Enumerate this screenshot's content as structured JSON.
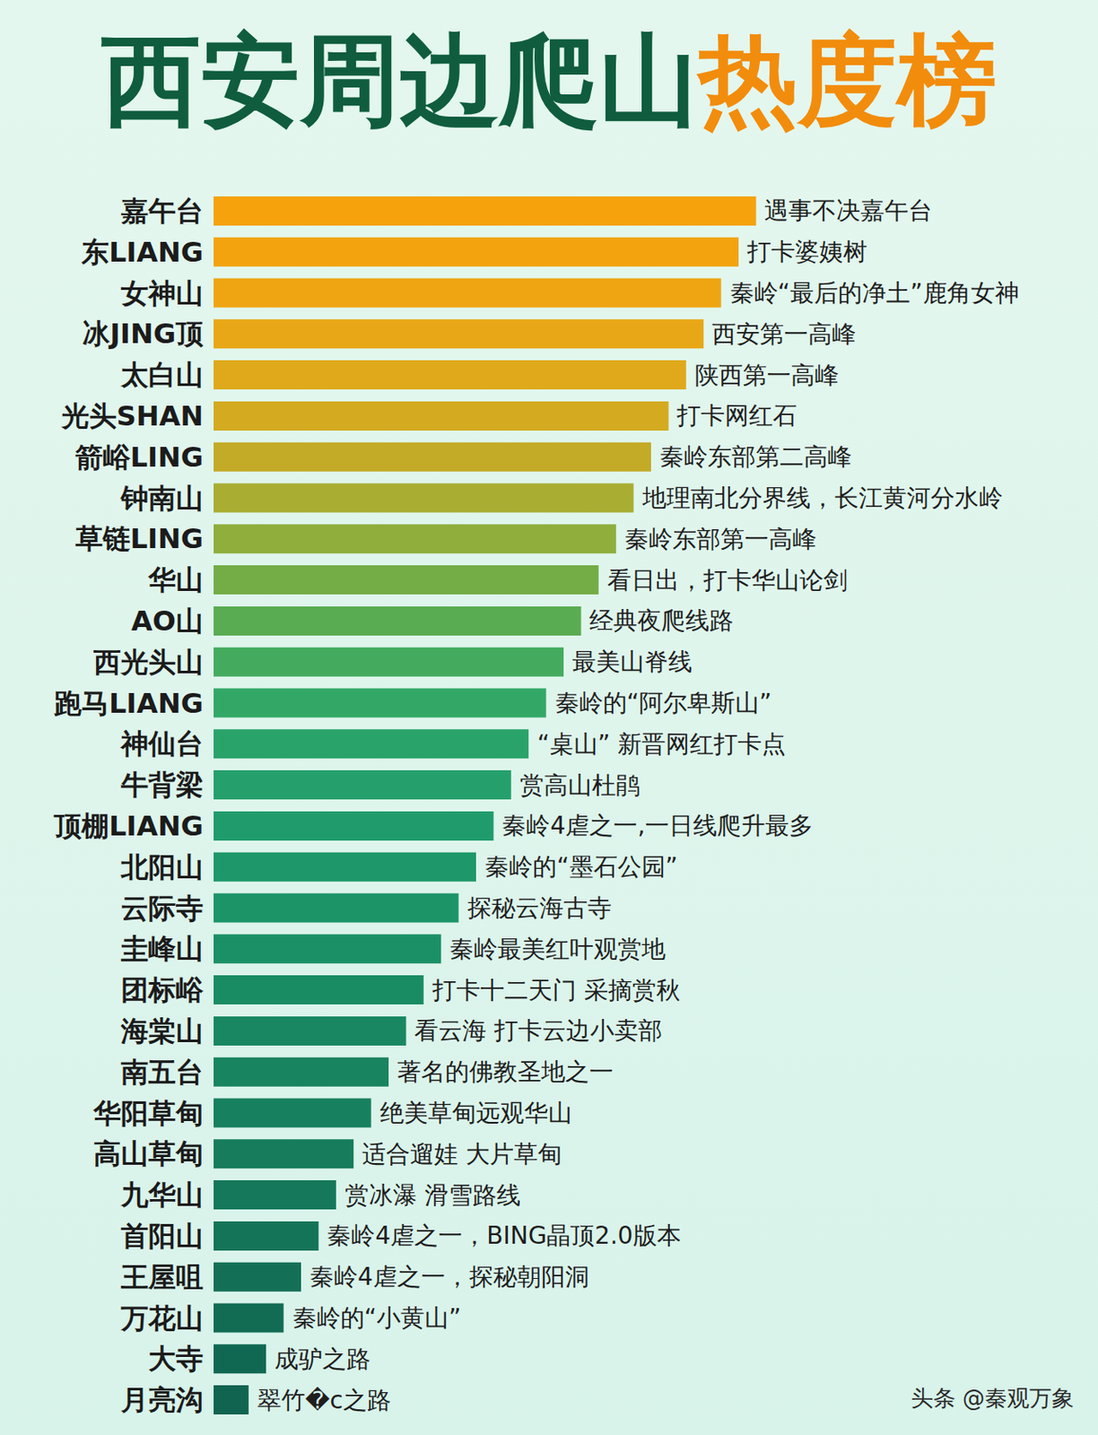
{
  "chart_data": {
    "type": "bar",
    "orientation": "horizontal",
    "title": "西安周边爬山热度榜",
    "title_highlight": "热度榜",
    "source": "头条 @秦观万象",
    "categories": [
      "嘉午台",
      "东LIANG",
      "女神山",
      "冰JING顶",
      "太白山",
      "光头SHAN",
      "箭峪LING",
      "钟南山",
      "草链LING",
      "华山",
      "AO山",
      "西光头山",
      "跑马LIANG",
      "神仙台",
      "牛背梁",
      "顶棚LIANG",
      "北阳山",
      "云际寺",
      "圭峰山",
      "团标峪",
      "海棠山",
      "南五台",
      "华阳草甸",
      "高山草甸",
      "九华山",
      "首阳山",
      "王屋咀",
      "万花山",
      "大寺",
      "月亮沟"
    ],
    "values": [
      31,
      30,
      29,
      28,
      27,
      26,
      25,
      24,
      23,
      22,
      21,
      20,
      19,
      18,
      17,
      16,
      15,
      14,
      13,
      12,
      11,
      10,
      9,
      8,
      7,
      6,
      5,
      4,
      3,
      2
    ],
    "annotations": [
      "遇事不决嘉午台",
      "打卡婆姨树",
      "秦岭“最后的净土”鹿角女神",
      "西安第一高峰",
      "陕西第一高峰",
      "打卡网红石",
      "秦岭东部第二高峰",
      "地理南北分界线，长江黄河分水岭",
      "秦岭东部第一高峰",
      "看日出，打卡华山论剑",
      "经典夜爬线路",
      "最美山脊线",
      "秦岭的“阿尔卑斯山”",
      "“桌山” 新晋网红打卡点",
      "赏高山杜鹃",
      "秦岭4虐之一,一日线爬升最多",
      "秦岭的“墨石公园”",
      "探秘云海古寺",
      "秦岭最美红叶观赏地",
      "打卡十二天门 采摘赏秋",
      "看云海 打卡云边小卖部",
      "著名的佛教圣地之一",
      "绝美草甸远观华山",
      "适合遛娃 大片草甸",
      "赏冰瀑 滑雪路线",
      "秦岭4虐之一，BING晶顶2.0版本",
      "秦岭4虐之一，探秘朝阳洞",
      "秦岭的“小黄山”",
      "成驴之路",
      "翠竹�c之路"
    ],
    "colors": [
      "#f5a20c",
      "#f2a30e",
      "#efa512",
      "#e8a716",
      "#dfa91b",
      "#d4aa20",
      "#c3ab28",
      "#a9ad32",
      "#8fae3c",
      "#74ad46",
      "#5aac52",
      "#44ab5e",
      "#33a866",
      "#2aa36a",
      "#25a06c",
      "#209c6c",
      "#1e986a",
      "#1c9468",
      "#1b9066",
      "#1a8c64",
      "#198862",
      "#188460",
      "#17805e",
      "#167c5c",
      "#15785a",
      "#147458",
      "#137056",
      "#126c54",
      "#116852",
      "#106450"
    ],
    "xlim": [
      0,
      50
    ],
    "xticks": [
      0,
      50
    ],
    "tick_labels": "y",
    "grid": false,
    "data_labels": false
  }
}
